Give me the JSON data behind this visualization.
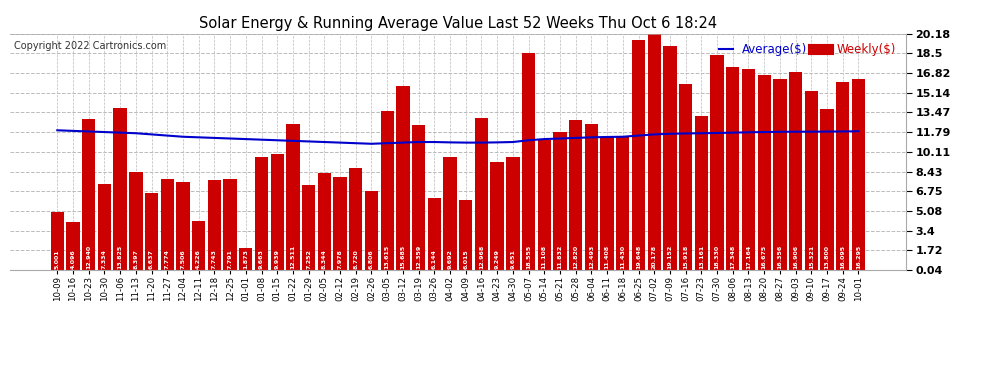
{
  "title": "Solar Energy & Running Average Value Last 52 Weeks Thu Oct 6 18:24",
  "copyright": "Copyright 2022 Cartronics.com",
  "bar_color": "#cc0000",
  "avg_line_color": "#0000cc",
  "background_color": "#ffffff",
  "plot_bg_color": "#ffffff",
  "grid_color": "#bbbbbb",
  "ylim": [
    0.04,
    20.18
  ],
  "yticks": [
    0.04,
    1.72,
    3.4,
    5.08,
    6.75,
    8.43,
    10.11,
    11.79,
    13.47,
    15.14,
    16.82,
    18.5,
    20.18
  ],
  "categories": [
    "10-09",
    "10-16",
    "10-23",
    "10-30",
    "11-06",
    "11-13",
    "11-20",
    "11-27",
    "12-04",
    "12-11",
    "12-18",
    "12-25",
    "01-01",
    "01-08",
    "01-15",
    "01-22",
    "01-29",
    "02-05",
    "02-12",
    "02-19",
    "02-26",
    "03-05",
    "03-12",
    "03-19",
    "03-26",
    "04-02",
    "04-09",
    "04-16",
    "04-23",
    "04-30",
    "05-07",
    "05-14",
    "05-21",
    "05-28",
    "06-04",
    "06-11",
    "06-18",
    "06-25",
    "07-02",
    "07-09",
    "07-16",
    "07-23",
    "07-30",
    "08-06",
    "08-13",
    "08-20",
    "08-27",
    "09-03",
    "09-10",
    "09-17",
    "09-24",
    "10-01"
  ],
  "weekly_values": [
    5.001,
    4.096,
    12.94,
    7.334,
    13.825,
    8.397,
    6.637,
    7.774,
    7.506,
    4.226,
    7.743,
    7.791,
    1.873,
    9.663,
    9.939,
    12.511,
    7.252,
    8.344,
    7.978,
    8.72,
    6.806,
    13.615,
    15.685,
    12.359,
    6.144,
    9.692,
    6.015,
    12.968,
    9.249,
    9.651,
    18.555,
    11.108,
    11.832,
    12.82,
    12.493,
    11.408,
    11.43,
    19.648,
    20.178,
    19.152,
    15.918,
    13.161,
    18.33,
    17.348,
    17.164,
    16.675,
    16.356,
    16.906,
    15.321,
    13.8,
    16.095,
    16.295
  ],
  "avg_values": [
    11.95,
    11.9,
    11.85,
    11.8,
    11.75,
    11.7,
    11.6,
    11.5,
    11.4,
    11.35,
    11.3,
    11.25,
    11.2,
    11.15,
    11.1,
    11.05,
    11.0,
    10.95,
    10.9,
    10.85,
    10.8,
    10.85,
    10.9,
    10.95,
    10.95,
    10.92,
    10.9,
    10.9,
    10.92,
    10.95,
    11.1,
    11.2,
    11.25,
    11.3,
    11.35,
    11.38,
    11.4,
    11.5,
    11.6,
    11.65,
    11.68,
    11.7,
    11.72,
    11.75,
    11.78,
    11.8,
    11.82,
    11.83,
    11.83,
    11.84,
    11.85,
    11.87
  ],
  "legend_avg_label": "Average($)",
  "legend_weekly_label": "Weekly($)"
}
